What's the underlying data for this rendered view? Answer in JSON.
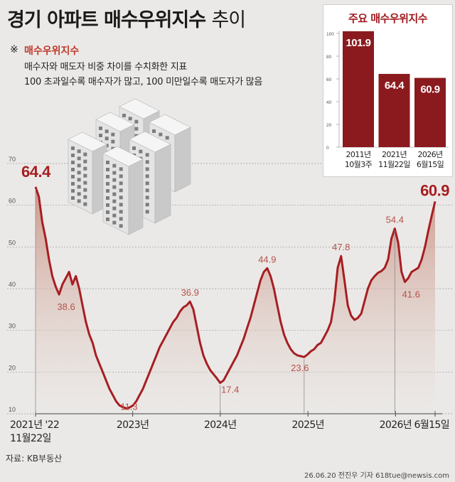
{
  "title_bold": "경기 아파트 매수우위지수",
  "title_light": "추이",
  "note": {
    "mark": "※",
    "title": "매수우위지수",
    "lines": [
      "매수자와 매도자 비중 차이를 수치화한 지표",
      "100 초과일수록 매수자가 많고, 100 미만일수록 매도자가 많음"
    ]
  },
  "source": "자료: KB부동산",
  "credit": "26.06.20 전진우 기자 618tue@newsis.com",
  "colors": {
    "line": "#a61e22",
    "bar": "#8b1a1e",
    "area_top": "#c98f7f",
    "label": "#b5524a",
    "background": "#ebe9e7"
  },
  "icon": "apartment-buildings-icon",
  "chart_data": [
    {
      "type": "area",
      "ylim": [
        10,
        70
      ],
      "yticks": [
        10,
        20,
        30,
        40,
        50,
        60,
        70
      ],
      "grid": true,
      "x_labels": [
        {
          "date": "2021-11-22",
          "text": "2021년 '22"
        },
        {
          "date": "2023-01",
          "text": "2023년"
        },
        {
          "date": "2024-01",
          "text": "2024년"
        },
        {
          "date": "2025-01",
          "text": "2025년"
        },
        {
          "date": "2026-01",
          "text": "2026년"
        },
        {
          "date": "2026-06-15",
          "text": "6월15일"
        }
      ],
      "x_sublabel": "11월22일",
      "series": [
        {
          "x": [
            "2021-11-22",
            "2021-12-06",
            "2021-12-20",
            "2022-01-03",
            "2022-01-17",
            "2022-01-31",
            "2022-02-14",
            "2022-02-28",
            "2022-03-14",
            "2022-03-28",
            "2022-04-11",
            "2022-04-25",
            "2022-05-09",
            "2022-05-23",
            "2022-06-06",
            "2022-06-20",
            "2022-07-04",
            "2022-07-18",
            "2022-08-01",
            "2022-08-15",
            "2022-08-29",
            "2022-09-12",
            "2022-09-26",
            "2022-10-10",
            "2022-10-24",
            "2022-11-07",
            "2022-11-21",
            "2022-12-05",
            "2022-12-19",
            "2023-01-02",
            "2023-01-16",
            "2023-01-30",
            "2023-02-13",
            "2023-02-27",
            "2023-03-13",
            "2023-03-27",
            "2023-04-10",
            "2023-04-24",
            "2023-05-08",
            "2023-05-22",
            "2023-06-05",
            "2023-06-19",
            "2023-07-03",
            "2023-07-17",
            "2023-07-31",
            "2023-08-14",
            "2023-08-28",
            "2023-09-11",
            "2023-09-25",
            "2023-10-09",
            "2023-10-23",
            "2023-11-06",
            "2023-11-20",
            "2023-12-04",
            "2023-12-18",
            "2024-01-01",
            "2024-01-15",
            "2024-01-29",
            "2024-02-12",
            "2024-02-26",
            "2024-03-11",
            "2024-03-25",
            "2024-04-08",
            "2024-04-22",
            "2024-05-06",
            "2024-05-20",
            "2024-06-03",
            "2024-06-17",
            "2024-07-01",
            "2024-07-15",
            "2024-07-29",
            "2024-08-12",
            "2024-08-26",
            "2024-09-09",
            "2024-09-23",
            "2024-10-07",
            "2024-10-21",
            "2024-11-04",
            "2024-11-18",
            "2024-12-02",
            "2024-12-16",
            "2024-12-30",
            "2025-01-13",
            "2025-01-27",
            "2025-02-10",
            "2025-02-24",
            "2025-03-10",
            "2025-03-24",
            "2025-04-07",
            "2025-04-21",
            "2025-05-05",
            "2025-05-19",
            "2025-06-02",
            "2025-06-16",
            "2025-06-30",
            "2025-07-14",
            "2025-07-28",
            "2025-08-11",
            "2025-08-25",
            "2025-09-08",
            "2025-09-22",
            "2025-10-06",
            "2025-10-20",
            "2025-11-03",
            "2025-11-17",
            "2025-12-01",
            "2025-12-15",
            "2025-12-29",
            "2026-01-12",
            "2026-01-26",
            "2026-02-09",
            "2026-02-23",
            "2026-03-09",
            "2026-03-23",
            "2026-04-06",
            "2026-04-20",
            "2026-05-04",
            "2026-05-18",
            "2026-06-01",
            "2026-06-15"
          ],
          "values": [
            64.4,
            62.0,
            56.0,
            52.0,
            47.0,
            43.0,
            40.5,
            38.6,
            41.0,
            42.5,
            44.0,
            41.0,
            43.0,
            40.0,
            36.0,
            32.0,
            29.0,
            27.0,
            24.0,
            22.0,
            20.0,
            18.0,
            16.0,
            14.5,
            13.0,
            12.0,
            11.6,
            11.3,
            11.5,
            12.0,
            13.0,
            14.5,
            16.0,
            18.0,
            20.0,
            22.0,
            24.0,
            26.0,
            27.5,
            29.0,
            30.5,
            32.0,
            33.0,
            34.5,
            35.5,
            36.0,
            36.9,
            35.0,
            31.0,
            27.0,
            24.0,
            22.0,
            20.5,
            19.5,
            18.5,
            17.4,
            18.0,
            19.5,
            21.0,
            22.5,
            24.0,
            26.0,
            28.0,
            30.5,
            33.0,
            36.0,
            39.0,
            42.0,
            44.0,
            44.9,
            43.0,
            40.0,
            36.0,
            32.0,
            29.0,
            27.0,
            25.5,
            24.5,
            24.0,
            23.8,
            23.6,
            24.2,
            25.0,
            25.5,
            26.5,
            27.0,
            28.5,
            30.0,
            32.0,
            37.0,
            45.0,
            47.8,
            42.0,
            36.0,
            33.5,
            32.5,
            33.0,
            34.0,
            37.0,
            40.0,
            42.0,
            43.0,
            43.8,
            44.2,
            45.0,
            47.0,
            52.0,
            54.4,
            51.0,
            44.0,
            41.6,
            42.5,
            44.0,
            44.5,
            45.0,
            47.0,
            50.0,
            54.0,
            57.5,
            60.9
          ]
        }
      ],
      "annotations": [
        {
          "date": "2021-11-22",
          "value": 64.4,
          "text": "64.4"
        },
        {
          "date": "2022-02-28",
          "value": 38.6,
          "text": "38.6"
        },
        {
          "date": "2022-12-05",
          "value": 11.3,
          "text": "11.3"
        },
        {
          "date": "2023-08-28",
          "value": 36.9,
          "text": "36.9"
        },
        {
          "date": "2024-01-01",
          "value": 17.4,
          "text": "17.4"
        },
        {
          "date": "2024-07-15",
          "value": 44.9,
          "text": "44.9"
        },
        {
          "date": "2024-12-16",
          "value": 23.6,
          "text": "23.6"
        },
        {
          "date": "2025-05-19",
          "value": 47.8,
          "text": "47.8"
        },
        {
          "date": "2025-12-29",
          "value": 54.4,
          "text": "54.4"
        },
        {
          "date": "2026-02-23",
          "value": 41.6,
          "text": "41.6"
        },
        {
          "date": "2026-06-15",
          "value": 60.9,
          "text": "60.9"
        }
      ]
    },
    {
      "type": "bar",
      "title": "주요 매수우위지수",
      "categories": [
        [
          "2011년",
          "10월3주"
        ],
        [
          "2021년",
          "11월22일"
        ],
        [
          "2026년",
          "6월15일"
        ]
      ],
      "values": [
        101.9,
        64.4,
        60.9
      ],
      "ylim": [
        0,
        100
      ],
      "yticks": [
        0,
        20,
        40,
        60,
        80,
        100
      ]
    }
  ]
}
